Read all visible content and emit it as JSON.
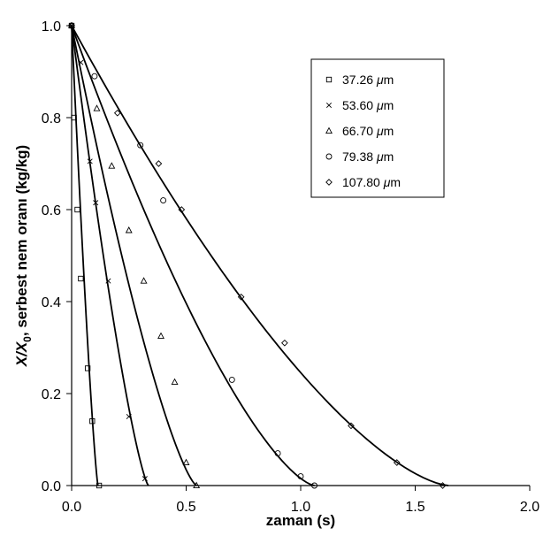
{
  "chart_data": {
    "type": "scatter",
    "title": "",
    "xlabel": "zaman (s)",
    "ylabel": {
      "main": "X/X",
      "subscript": "0",
      "rest": ",  serbest nem oranı (kg/kg)"
    },
    "xlim": [
      0,
      2.0
    ],
    "ylim": [
      0,
      1.0
    ],
    "x_ticks": [
      0.0,
      0.5,
      1.0,
      1.5,
      2.0
    ],
    "x_tick_labels": [
      "0.0",
      "0.5",
      "1.0",
      "1.5",
      "2.0"
    ],
    "y_ticks": [
      0.0,
      0.2,
      0.4,
      0.6,
      0.8,
      1.0
    ],
    "y_tick_labels": [
      "0.0",
      "0.2",
      "0.4",
      "0.6",
      "0.8",
      "1.0"
    ],
    "grid": false,
    "legend_position": "top-right",
    "series": [
      {
        "name": "37.26",
        "unit_mu": "μ",
        "unit": "m",
        "marker": "square",
        "curve_end": 0.115,
        "curve_exp": 1.25,
        "points": [
          [
            0.0,
            1.0
          ],
          [
            0.01,
            0.8
          ],
          [
            0.025,
            0.6
          ],
          [
            0.04,
            0.45
          ],
          [
            0.07,
            0.255
          ],
          [
            0.09,
            0.14
          ],
          [
            0.12,
            0.0
          ]
        ]
      },
      {
        "name": "53.60",
        "unit_mu": "μ",
        "unit": "m",
        "marker": "x",
        "curve_end": 0.335,
        "curve_exp": 1.3,
        "points": [
          [
            0.0,
            1.0
          ],
          [
            0.04,
            0.92
          ],
          [
            0.08,
            0.705
          ],
          [
            0.105,
            0.615
          ],
          [
            0.16,
            0.445
          ],
          [
            0.25,
            0.15
          ],
          [
            0.32,
            0.015
          ]
        ]
      },
      {
        "name": "66.70",
        "unit_mu": "μ",
        "unit": "m",
        "marker": "triangle",
        "curve_end": 0.545,
        "curve_exp": 1.35,
        "points": [
          [
            0.0,
            1.0
          ],
          [
            0.11,
            0.82
          ],
          [
            0.175,
            0.695
          ],
          [
            0.25,
            0.555
          ],
          [
            0.315,
            0.445
          ],
          [
            0.39,
            0.325
          ],
          [
            0.45,
            0.225
          ],
          [
            0.5,
            0.05
          ],
          [
            0.545,
            0.0
          ]
        ]
      },
      {
        "name": "79.38",
        "unit_mu": "μ",
        "unit": "m",
        "marker": "circle",
        "curve_end": 1.06,
        "curve_exp": 1.45,
        "points": [
          [
            0.0,
            1.0
          ],
          [
            0.1,
            0.89
          ],
          [
            0.3,
            0.74
          ],
          [
            0.4,
            0.62
          ],
          [
            0.7,
            0.23
          ],
          [
            0.9,
            0.07
          ],
          [
            1.0,
            0.02
          ],
          [
            1.06,
            0.0
          ]
        ]
      },
      {
        "name": "107.80",
        "unit_mu": "μ",
        "unit": "m",
        "marker": "diamond",
        "curve_end": 1.645,
        "curve_exp": 1.5,
        "points": [
          [
            0.0,
            1.0
          ],
          [
            0.2,
            0.81
          ],
          [
            0.38,
            0.7
          ],
          [
            0.48,
            0.6
          ],
          [
            0.74,
            0.41
          ],
          [
            0.93,
            0.31
          ],
          [
            1.22,
            0.13
          ],
          [
            1.42,
            0.05
          ],
          [
            1.62,
            0.0
          ]
        ]
      }
    ]
  }
}
